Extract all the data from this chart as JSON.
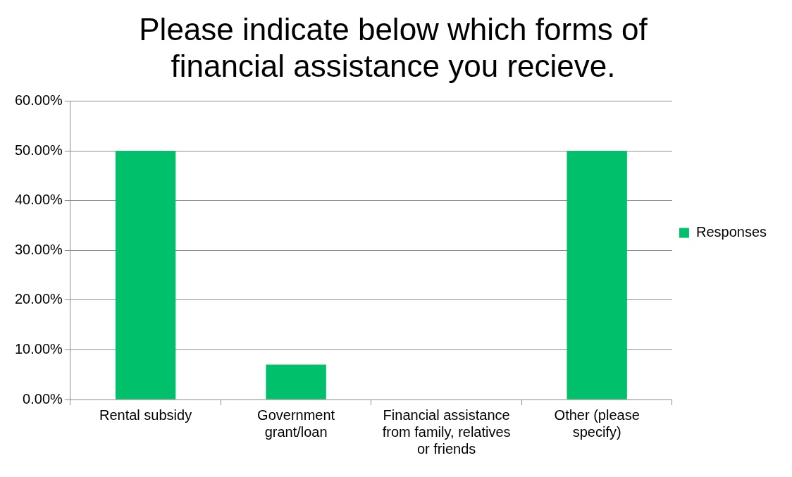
{
  "chart_data": {
    "type": "bar",
    "title": "Please indicate below which forms of financial assistance you recieve.",
    "categories": [
      "Rental subsidy",
      "Government grant/loan",
      "Financial assistance from family, relatives or friends",
      "Other (please specify)"
    ],
    "series": [
      {
        "name": "Responses",
        "color": "#00c06b",
        "values": [
          50,
          7,
          0,
          50
        ]
      }
    ],
    "ylim": [
      0,
      60
    ],
    "yticks": [
      {
        "value": 0,
        "label": "0.00%"
      },
      {
        "value": 10,
        "label": "10.00%"
      },
      {
        "value": 20,
        "label": "20.00%"
      },
      {
        "value": 30,
        "label": "30.00%"
      },
      {
        "value": 40,
        "label": "40.00%"
      },
      {
        "value": 50,
        "label": "50.00%"
      },
      {
        "value": 60,
        "label": "60.00%"
      }
    ],
    "grid": "y",
    "legend": "right"
  }
}
